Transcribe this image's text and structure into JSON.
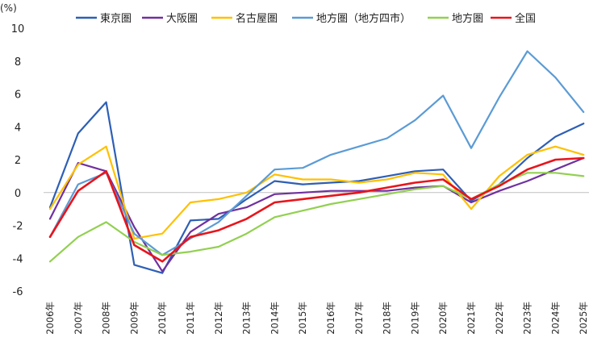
{
  "chart_data": {
    "type": "line",
    "unit_label": "(%)",
    "x": [
      "2006年",
      "2007年",
      "2008年",
      "2009年",
      "2010年",
      "2011年",
      "2012年",
      "2013年",
      "2014年",
      "2015年",
      "2016年",
      "2017年",
      "2018年",
      "2019年",
      "2020年",
      "2021年",
      "2022年",
      "2023年",
      "2024年",
      "2025年"
    ],
    "ylim": [
      -6,
      10
    ],
    "yticks": [
      "10",
      "8",
      "6",
      "4",
      "2",
      "0",
      "-2",
      "-4",
      "-6"
    ],
    "grid": false,
    "legend": "top",
    "series": [
      {
        "name": "東京圏",
        "color": "#2E5FB5",
        "values": [
          -0.9,
          3.6,
          5.5,
          -4.4,
          -4.9,
          -1.7,
          -1.6,
          -0.4,
          0.7,
          0.5,
          0.6,
          0.7,
          1.0,
          1.3,
          1.4,
          -0.5,
          0.5,
          2.1,
          3.4,
          4.2
        ]
      },
      {
        "name": "大阪圏",
        "color": "#7030A0",
        "values": [
          -1.6,
          1.8,
          1.3,
          -2.1,
          -4.8,
          -2.4,
          -1.3,
          -0.9,
          -0.1,
          0.0,
          0.1,
          0.1,
          0.1,
          0.3,
          0.4,
          -0.6,
          0.1,
          0.7,
          1.4,
          2.1
        ]
      },
      {
        "name": "名古屋圏",
        "color": "#FFC000",
        "values": [
          -1.0,
          1.7,
          2.8,
          -2.8,
          -2.5,
          -0.6,
          -0.4,
          0.0,
          1.1,
          0.8,
          0.8,
          0.6,
          0.8,
          1.2,
          1.1,
          -1.0,
          1.0,
          2.3,
          2.8,
          2.3
        ]
      },
      {
        "name": "地方圏（地方四市）",
        "color": "#5B9BD5",
        "values": [
          -2.7,
          0.5,
          1.2,
          -2.5,
          -3.8,
          -2.8,
          -1.8,
          -0.2,
          1.4,
          1.5,
          2.3,
          2.8,
          3.3,
          4.4,
          5.9,
          2.7,
          5.8,
          8.6,
          7.0,
          4.9
        ]
      },
      {
        "name": "地方圏",
        "color": "#92D050",
        "values": [
          -4.2,
          -2.7,
          -1.8,
          -3.0,
          -3.8,
          -3.6,
          -3.3,
          -2.5,
          -1.5,
          -1.1,
          -0.7,
          -0.4,
          -0.1,
          0.2,
          0.4,
          -0.4,
          0.5,
          1.2,
          1.2,
          1.0
        ]
      },
      {
        "name": "全国",
        "color": "#E8141B",
        "values": [
          -2.7,
          0.1,
          1.3,
          -3.2,
          -4.2,
          -2.7,
          -2.3,
          -1.6,
          -0.6,
          -0.4,
          -0.2,
          0.0,
          0.3,
          0.6,
          0.8,
          -0.4,
          0.4,
          1.4,
          2.0,
          2.1
        ]
      }
    ]
  }
}
